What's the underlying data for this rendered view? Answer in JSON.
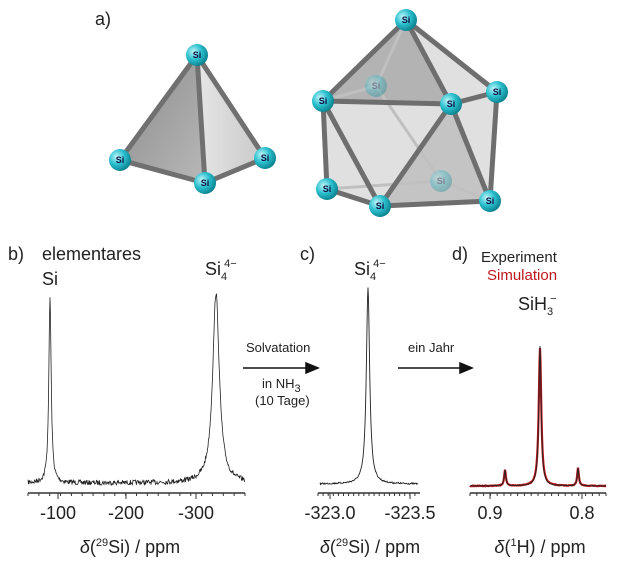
{
  "structures": {
    "label": "a)",
    "atom_label": "Si"
  },
  "panel_b": {
    "label": "b)",
    "annotation": [
      "elementares",
      "Si"
    ],
    "peak_label": {
      "base": "Si",
      "sub": "4",
      "sup": "4−"
    },
    "xticks": [
      "-100",
      "-200",
      "-300"
    ],
    "xlabel": {
      "delta": "δ",
      "open": "(",
      "sup": "29",
      "rest": "Si) / ppm"
    }
  },
  "arrow_1": {
    "above": "Solvatation",
    "below": {
      "base": "in NH",
      "sub": "3"
    },
    "below_2": "(10 Tage)"
  },
  "panel_c": {
    "label": "c)",
    "peak_label": {
      "base": "Si",
      "sub": "4",
      "sup": "4−"
    },
    "xticks": [
      "-323.0",
      "-323.5"
    ],
    "xlabel": {
      "delta": "δ",
      "open": "(",
      "sup": "29",
      "rest": "Si) / ppm"
    }
  },
  "arrow_2": {
    "above": "ein Jahr"
  },
  "panel_d": {
    "label": "d)",
    "legend": [
      "Experiment",
      "Simulation"
    ],
    "peak_label": {
      "base": "SiH",
      "sub": "3",
      "sup": "−"
    },
    "xticks": [
      "0.9",
      "0.8"
    ],
    "xlabel": {
      "delta": "δ",
      "open": "(",
      "sup": "1",
      "rest": "H) / ppm"
    }
  }
}
